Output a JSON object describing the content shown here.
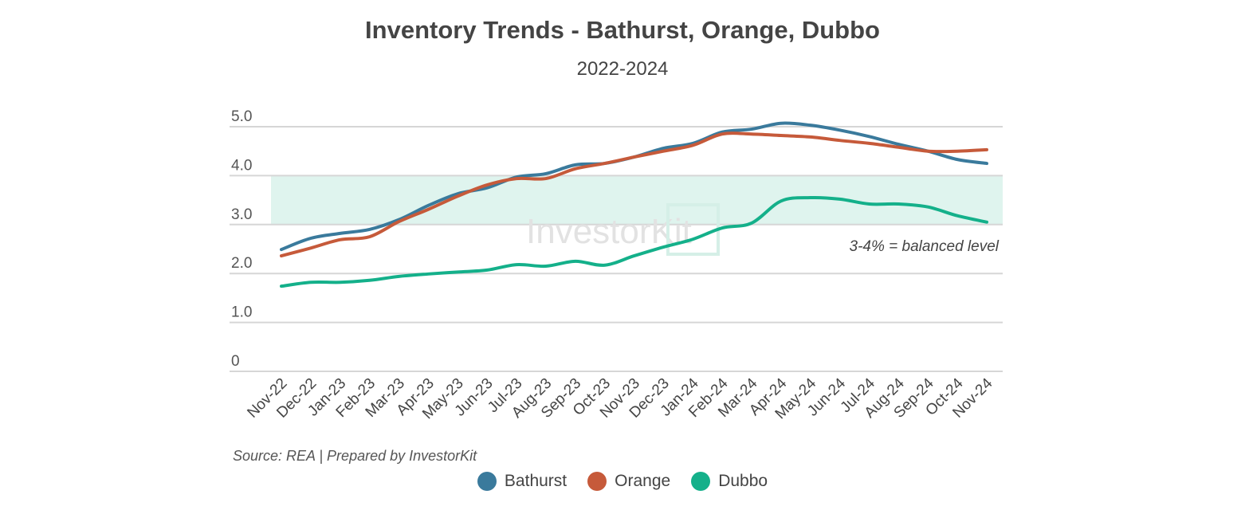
{
  "chart_data": {
    "type": "line",
    "title": "Inventory Trends - Bathurst, Orange, Dubbo",
    "subtitle": "2022-2024",
    "categories": [
      "Nov-22",
      "Dec-22",
      "Jan-23",
      "Feb-23",
      "Mar-23",
      "Apr-23",
      "May-23",
      "Jun-23",
      "Jul-23",
      "Aug-23",
      "Sep-23",
      "Oct-23",
      "Nov-23",
      "Dec-23",
      "Jan-24",
      "Feb-24",
      "Mar-24",
      "Apr-24",
      "May-24",
      "Jun-24",
      "Jul-24",
      "Aug-24",
      "Sep-24",
      "Oct-24",
      "Nov-24"
    ],
    "series": [
      {
        "name": "Bathurst",
        "color": "#3a7a9c",
        "values": [
          2.49,
          2.72,
          2.82,
          2.9,
          3.1,
          3.39,
          3.63,
          3.75,
          3.97,
          4.04,
          4.22,
          4.25,
          4.38,
          4.56,
          4.66,
          4.89,
          4.95,
          5.07,
          5.03,
          4.93,
          4.8,
          4.64,
          4.5,
          4.33,
          4.25
        ]
      },
      {
        "name": "Orange",
        "color": "#c65a3a",
        "values": [
          2.36,
          2.52,
          2.69,
          2.75,
          3.06,
          3.31,
          3.58,
          3.81,
          3.94,
          3.94,
          4.14,
          4.25,
          4.38,
          4.5,
          4.62,
          4.85,
          4.85,
          4.82,
          4.79,
          4.72,
          4.66,
          4.58,
          4.5,
          4.5,
          4.53
        ]
      },
      {
        "name": "Dubbo",
        "color": "#14b08a",
        "values": [
          1.74,
          1.82,
          1.82,
          1.86,
          1.94,
          1.99,
          2.03,
          2.07,
          2.18,
          2.15,
          2.25,
          2.17,
          2.36,
          2.54,
          2.7,
          2.93,
          3.03,
          3.48,
          3.55,
          3.52,
          3.42,
          3.42,
          3.36,
          3.18,
          3.05
        ]
      }
    ],
    "yticks": [
      "0",
      "1.0",
      "2.0",
      "3.0",
      "4.0",
      "5.0"
    ],
    "ylim": [
      0,
      5
    ],
    "grid": true,
    "band": {
      "from": 3,
      "to": 4,
      "color": "#dff4ee",
      "label": "3-4% = balanced level"
    },
    "watermark": "InvestorKit",
    "legend_position": "bottom",
    "source": "Source: REA | Prepared by InvestorKit"
  }
}
